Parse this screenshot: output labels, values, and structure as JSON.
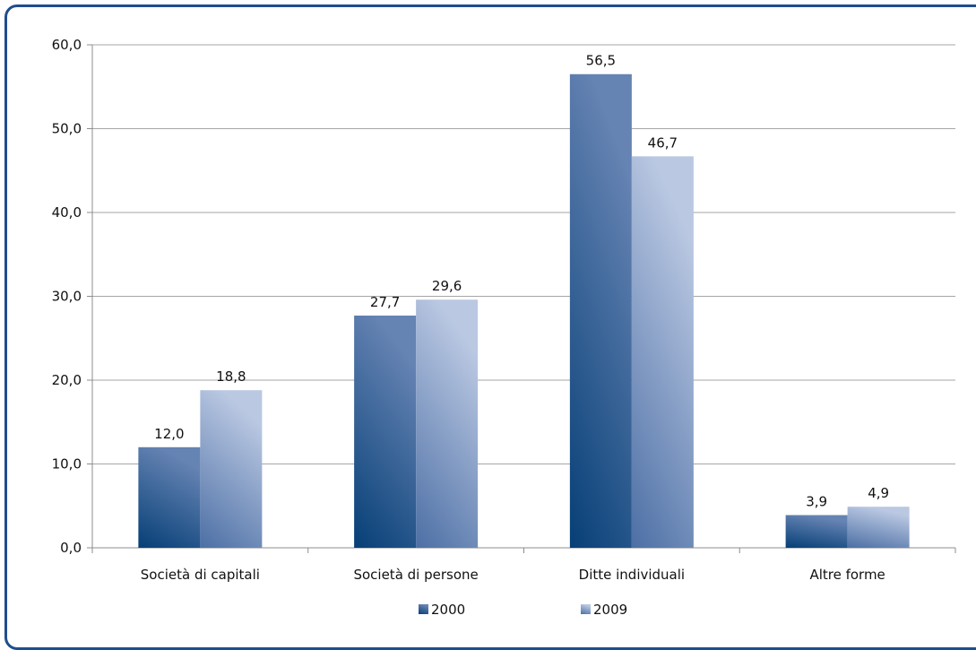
{
  "chart_data": {
    "type": "bar",
    "title": "",
    "xlabel": "",
    "ylabel": "",
    "categories": [
      "Società di capitali",
      "Società di persone",
      "Ditte individuali",
      "Altre forme"
    ],
    "series": [
      {
        "name": "2000",
        "values": [
          12.0,
          27.7,
          56.5,
          3.9
        ],
        "labels": [
          "12,0",
          "27,7",
          "56,5",
          "3,9"
        ],
        "color": "#0d4f86"
      },
      {
        "name": "2009",
        "values": [
          18.8,
          29.6,
          46.7,
          4.9
        ],
        "labels": [
          "18,8",
          "29,6",
          "46,7",
          "4,9"
        ],
        "color": "#a9b9d8"
      }
    ],
    "ylim": [
      0,
      60
    ],
    "yticks": [
      0,
      10,
      20,
      30,
      40,
      50,
      60
    ],
    "ytick_labels": [
      "0,0",
      "10,0",
      "20,0",
      "30,0",
      "40,0",
      "50,0",
      "60,0"
    ],
    "grid": true,
    "legend_position": "bottom"
  },
  "colors": {
    "frame_border": "#1f4e8c",
    "gridline": "#a6a6a6",
    "series_2000_dark": "#084a83",
    "series_2000_light": "#5b7fb0",
    "series_2009_dark": "#5b7eb0",
    "series_2009_light": "#b8c6e0"
  }
}
